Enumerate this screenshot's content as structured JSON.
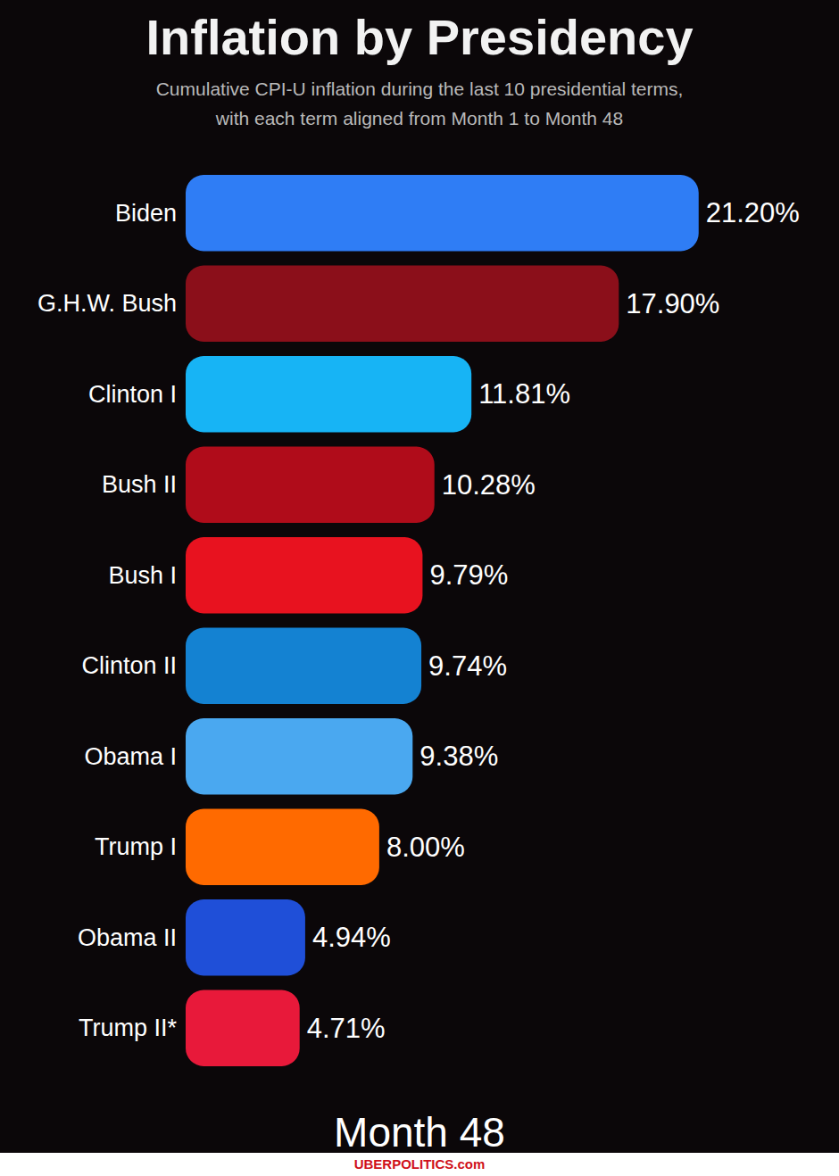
{
  "chart_data": {
    "type": "bar",
    "orientation": "horizontal",
    "title": "Inflation by Presidency",
    "subtitle": "Cumulative CPI-U inflation during the last 10 presidential terms,\nwith each term aligned from Month 1 to Month 48",
    "annotation": "Month 48",
    "source": "UBERPOLITICS.com",
    "categories": [
      "Biden",
      "G.H.W. Bush",
      "Clinton I",
      "Bush II",
      "Bush I",
      "Clinton II",
      "Obama I",
      "Trump I",
      "Obama II",
      "Trump II*"
    ],
    "values": [
      21.2,
      17.9,
      11.81,
      10.28,
      9.79,
      9.74,
      9.38,
      8.0,
      4.94,
      4.71
    ],
    "value_labels": [
      "21.20%",
      "17.90%",
      "11.81%",
      "10.28%",
      "9.79%",
      "9.74%",
      "9.38%",
      "8.00%",
      "4.94%",
      "4.71%"
    ],
    "colors": [
      "#2f7df5",
      "#8b0f1a",
      "#17b4f5",
      "#b00c1a",
      "#e8121f",
      "#1482d2",
      "#4aa8f0",
      "#ff6a00",
      "#1f4fd8",
      "#e8193a"
    ],
    "xlim": [
      0,
      27
    ],
    "data_labels": true,
    "tick_labels": false,
    "grid": false
  }
}
